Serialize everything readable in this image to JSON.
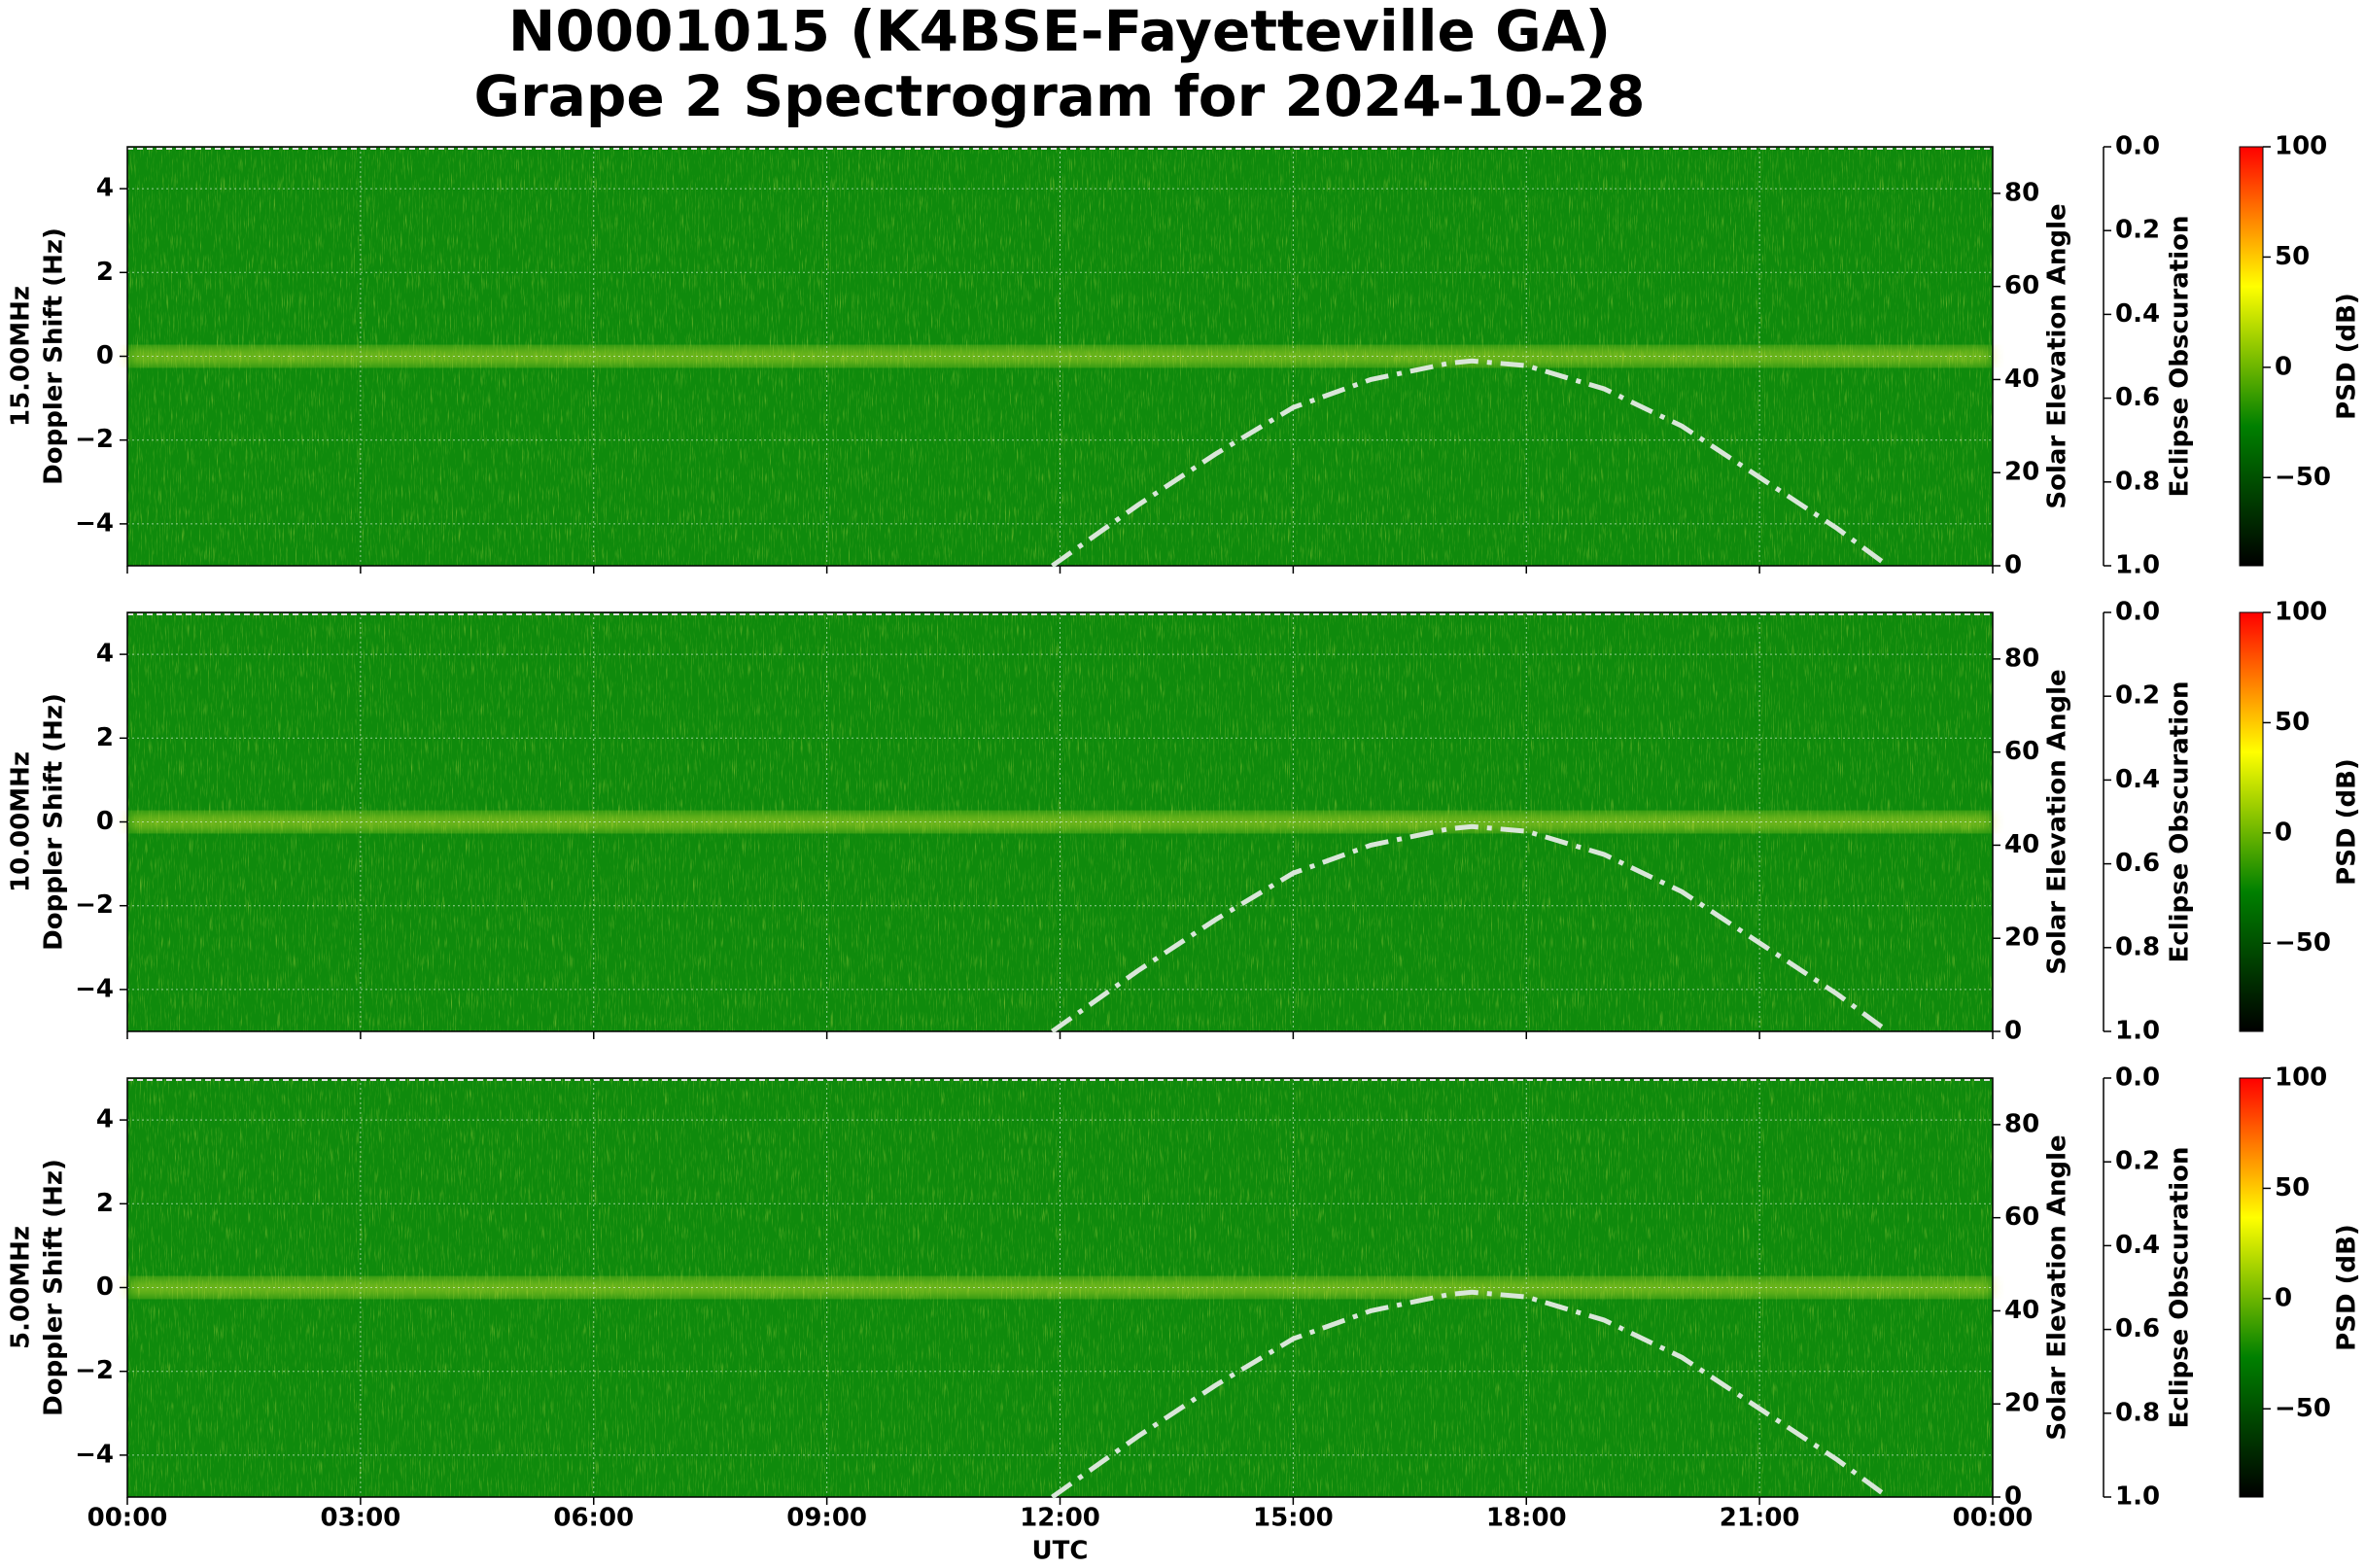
{
  "chart_data": [
    {
      "type": "spectrogram",
      "title": "N0001015 (K4BSE-Fayetteville GA)",
      "subtitle": "Grape 2 Spectrogram for 2024-10-28",
      "freq_label": "15.00MHz",
      "ylabel": "Doppler Shift (Hz)",
      "xlim": [
        0,
        24
      ],
      "xticks": [
        0,
        3,
        6,
        9,
        12,
        15,
        18,
        21,
        24
      ],
      "ylim": [
        -5,
        5
      ],
      "yticks": [
        {
          "value": -4,
          "label": "−4"
        },
        {
          "value": -2,
          "label": "−2"
        },
        0,
        2,
        4
      ],
      "y2label": "Solar Elevation Angle",
      "y2lim": [
        0,
        90
      ],
      "y2ticks": [
        0,
        20,
        40,
        60,
        80
      ],
      "elevation": {
        "axis": "y2",
        "color": "#d9e6d9",
        "x": [
          11.9,
          13,
          14,
          15,
          16,
          17,
          17.3,
          18,
          19,
          20,
          21,
          22,
          22.65
        ],
        "values": [
          0,
          13,
          24,
          34,
          40,
          43.5,
          44,
          43,
          38,
          30,
          19,
          8,
          0
        ]
      },
      "eclipse_label": "Eclipse Obscuration",
      "eclipse_lim": [
        1,
        0
      ],
      "eclipse_ticks": [
        {
          "value": 0,
          "label": "0.0"
        },
        0.2,
        0.4,
        0.6,
        0.8,
        {
          "value": 1,
          "label": "1.0"
        }
      ],
      "clabel": "PSD (dB)",
      "clim": [
        -90,
        100
      ],
      "cticks": [
        {
          "value": -50,
          "label": "−50"
        },
        0,
        50,
        100
      ],
      "cmap": [
        "#000000",
        "#008000",
        "#ffff00",
        "#ff0000"
      ],
      "grid": true
    },
    {
      "type": "spectrogram",
      "freq_label": "10.00MHz",
      "ylabel": "Doppler Shift (Hz)",
      "xlim": [
        0,
        24
      ],
      "xticks": [
        0,
        3,
        6,
        9,
        12,
        15,
        18,
        21,
        24
      ],
      "ylim": [
        -5,
        5
      ],
      "yticks": [
        {
          "value": -4,
          "label": "−4"
        },
        {
          "value": -2,
          "label": "−2"
        },
        0,
        2,
        4
      ],
      "y2label": "Solar Elevation Angle",
      "y2lim": [
        0,
        90
      ],
      "y2ticks": [
        0,
        20,
        40,
        60,
        80
      ],
      "elevation": {
        "axis": "y2",
        "color": "#d9e6d9",
        "x": [
          11.9,
          13,
          14,
          15,
          16,
          17,
          17.3,
          18,
          19,
          20,
          21,
          22,
          22.65
        ],
        "values": [
          0,
          13,
          24,
          34,
          40,
          43.5,
          44,
          43,
          38,
          30,
          19,
          8,
          0
        ]
      },
      "eclipse_label": "Eclipse Obscuration",
      "eclipse_lim": [
        1,
        0
      ],
      "eclipse_ticks": [
        {
          "value": 0,
          "label": "0.0"
        },
        0.2,
        0.4,
        0.6,
        0.8,
        {
          "value": 1,
          "label": "1.0"
        }
      ],
      "clabel": "PSD (dB)",
      "clim": [
        -90,
        100
      ],
      "cticks": [
        {
          "value": -50,
          "label": "−50"
        },
        0,
        50,
        100
      ],
      "cmap": [
        "#000000",
        "#008000",
        "#ffff00",
        "#ff0000"
      ],
      "grid": true
    },
    {
      "type": "spectrogram",
      "freq_label": "5.00MHz",
      "ylabel": "Doppler Shift (Hz)",
      "xlabel": "UTC",
      "xlim": [
        0,
        24
      ],
      "xticks": [
        {
          "value": 0,
          "label": "00:00"
        },
        {
          "value": 3,
          "label": "03:00"
        },
        {
          "value": 6,
          "label": "06:00"
        },
        {
          "value": 9,
          "label": "09:00"
        },
        {
          "value": 12,
          "label": "12:00"
        },
        {
          "value": 15,
          "label": "15:00"
        },
        {
          "value": 18,
          "label": "18:00"
        },
        {
          "value": 21,
          "label": "21:00"
        },
        {
          "value": 24,
          "label": "00:00"
        }
      ],
      "ylim": [
        -5,
        5
      ],
      "yticks": [
        {
          "value": -4,
          "label": "−4"
        },
        {
          "value": -2,
          "label": "−2"
        },
        0,
        2,
        4
      ],
      "y2label": "Solar Elevation Angle",
      "y2lim": [
        0,
        90
      ],
      "y2ticks": [
        0,
        20,
        40,
        60,
        80
      ],
      "elevation": {
        "axis": "y2",
        "color": "#d9e6d9",
        "x": [
          11.9,
          13,
          14,
          15,
          16,
          17,
          17.3,
          18,
          19,
          20,
          21,
          22,
          22.65
        ],
        "values": [
          0,
          13,
          24,
          34,
          40,
          43.5,
          44,
          43,
          38,
          30,
          19,
          8,
          0
        ]
      },
      "eclipse_label": "Eclipse Obscuration",
      "eclipse_lim": [
        1,
        0
      ],
      "eclipse_ticks": [
        {
          "value": 0,
          "label": "0.0"
        },
        0.2,
        0.4,
        0.6,
        0.8,
        {
          "value": 1,
          "label": "1.0"
        }
      ],
      "clabel": "PSD (dB)",
      "clim": [
        -90,
        100
      ],
      "cticks": [
        {
          "value": -50,
          "label": "−50"
        },
        0,
        50,
        100
      ],
      "cmap": [
        "#000000",
        "#008000",
        "#ffff00",
        "#ff0000"
      ],
      "grid": true
    }
  ]
}
